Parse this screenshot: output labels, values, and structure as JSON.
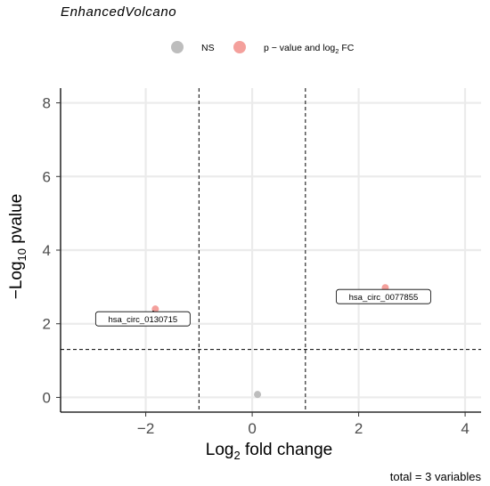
{
  "chart_data": {
    "type": "scatter",
    "title": "EnhancedVolcano",
    "xlabel_base": "Log",
    "xlabel_sub": "2",
    "xlabel_rest": " fold change",
    "ylabel_base": "−Log",
    "ylabel_sub": "10",
    "ylabel_rest": " pvalue",
    "xlim": [
      -3.6,
      4.3
    ],
    "ylim": [
      -0.4,
      8.4
    ],
    "x_ticks": [
      -2,
      0,
      2,
      4
    ],
    "x_tick_labels": [
      "−2",
      "0",
      "2",
      "4"
    ],
    "y_ticks": [
      0,
      2,
      4,
      6,
      8
    ],
    "y_tick_labels": [
      "0",
      "2",
      "4",
      "6",
      "8"
    ],
    "grid": true,
    "fc_cutoff_lines": [
      -1,
      1
    ],
    "p_cutoff_line": 1.3,
    "legend": {
      "position": "top",
      "items": [
        {
          "label_base": "NS",
          "label_sub": "",
          "label_rest": "",
          "color": "#bdbdbd"
        },
        {
          "label_base": "p − value and log",
          "label_sub": "2",
          "label_rest": " FC",
          "color": "#f4a09c"
        }
      ]
    },
    "points": [
      {
        "x": -1.82,
        "y": 2.4,
        "category": "p - value and log2 FC",
        "label": "hsa_circ_0130715"
      },
      {
        "x": 2.5,
        "y": 2.98,
        "category": "p - value and log2 FC",
        "label": "hsa_circ_0077855"
      },
      {
        "x": 0.1,
        "y": 0.08,
        "category": "NS",
        "label": ""
      }
    ],
    "caption": "total = 3 variables"
  }
}
